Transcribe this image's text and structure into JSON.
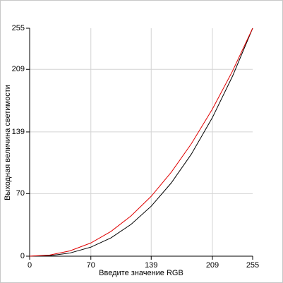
{
  "chart_data": {
    "type": "line",
    "x_label": "Введите значение RGB",
    "y_label": "Выходная величина светимости",
    "x": [
      0,
      23,
      46,
      70,
      93,
      116,
      139,
      162,
      185,
      209,
      232,
      255
    ],
    "series": [
      {
        "color": "#000000",
        "values": [
          0,
          0.6,
          3.5,
          10.1,
          20.5,
          35.6,
          55.9,
          82,
          114.3,
          155.1,
          201.4,
          255
        ]
      },
      {
        "color": "#e00000",
        "values": [
          0,
          1.3,
          5.9,
          14.8,
          27.7,
          45.1,
          67,
          94,
          125.9,
          164.6,
          207.1,
          255
        ]
      }
    ],
    "xlim": [
      0,
      255
    ],
    "ylim": [
      0,
      255
    ],
    "xticks": [
      0,
      70,
      139,
      209,
      255
    ],
    "yticks": [
      0,
      70,
      139,
      209,
      255
    ],
    "grid": true
  }
}
